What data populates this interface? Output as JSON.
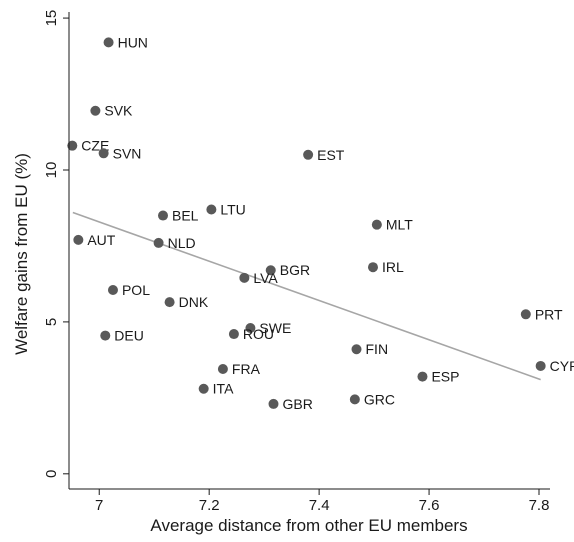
{
  "chart_data": {
    "type": "scatter",
    "xlabel": "Average distance from other EU members",
    "ylabel": "Welfare gains from EU (%)",
    "xlim": [
      6.945,
      7.82
    ],
    "ylim": [
      -0.5,
      15.2
    ],
    "xticks": [
      7,
      7.2,
      7.4,
      7.6,
      7.8
    ],
    "xtick_labels": [
      "7",
      "7.2",
      "7.4",
      "7.6",
      "7.8"
    ],
    "yticks": [
      0,
      5,
      10,
      15
    ],
    "ytick_labels": [
      "0",
      "5",
      "10",
      "15"
    ],
    "grid": false,
    "point_color": "#595959",
    "line_color": "#a6a6a6",
    "points": [
      {
        "label": "HUN",
        "x": 7.017,
        "y": 14.2
      },
      {
        "label": "SVK",
        "x": 6.993,
        "y": 11.95
      },
      {
        "label": "CZE",
        "x": 6.951,
        "y": 10.8
      },
      {
        "label": "SVN",
        "x": 7.008,
        "y": 10.55
      },
      {
        "label": "EST",
        "x": 7.38,
        "y": 10.5
      },
      {
        "label": "BEL",
        "x": 7.116,
        "y": 8.5
      },
      {
        "label": "LTU",
        "x": 7.204,
        "y": 8.7
      },
      {
        "label": "MLT",
        "x": 7.505,
        "y": 8.2
      },
      {
        "label": "AUT",
        "x": 6.962,
        "y": 7.7
      },
      {
        "label": "NLD",
        "x": 7.108,
        "y": 7.6
      },
      {
        "label": "BGR",
        "x": 7.312,
        "y": 6.7
      },
      {
        "label": "IRL",
        "x": 7.498,
        "y": 6.8
      },
      {
        "label": "LVA",
        "x": 7.264,
        "y": 6.45
      },
      {
        "label": "POL",
        "x": 7.025,
        "y": 6.05
      },
      {
        "label": "DNK",
        "x": 7.128,
        "y": 5.65
      },
      {
        "label": "PRT",
        "x": 7.776,
        "y": 5.25
      },
      {
        "label": "DEU",
        "x": 7.011,
        "y": 4.55
      },
      {
        "label": "SWE",
        "x": 7.275,
        "y": 4.8
      },
      {
        "label": "ROU",
        "x": 7.245,
        "y": 4.6
      },
      {
        "label": "FIN",
        "x": 7.468,
        "y": 4.1
      },
      {
        "label": "FRA",
        "x": 7.225,
        "y": 3.45
      },
      {
        "label": "CYP",
        "x": 7.803,
        "y": 3.55
      },
      {
        "label": "ESP",
        "x": 7.588,
        "y": 3.2
      },
      {
        "label": "ITA",
        "x": 7.19,
        "y": 2.8
      },
      {
        "label": "GRC",
        "x": 7.465,
        "y": 2.45
      },
      {
        "label": "GBR",
        "x": 7.317,
        "y": 2.3
      }
    ],
    "fit_line": {
      "x": [
        6.952,
        7.803
      ],
      "y": [
        8.6,
        3.1
      ]
    }
  }
}
